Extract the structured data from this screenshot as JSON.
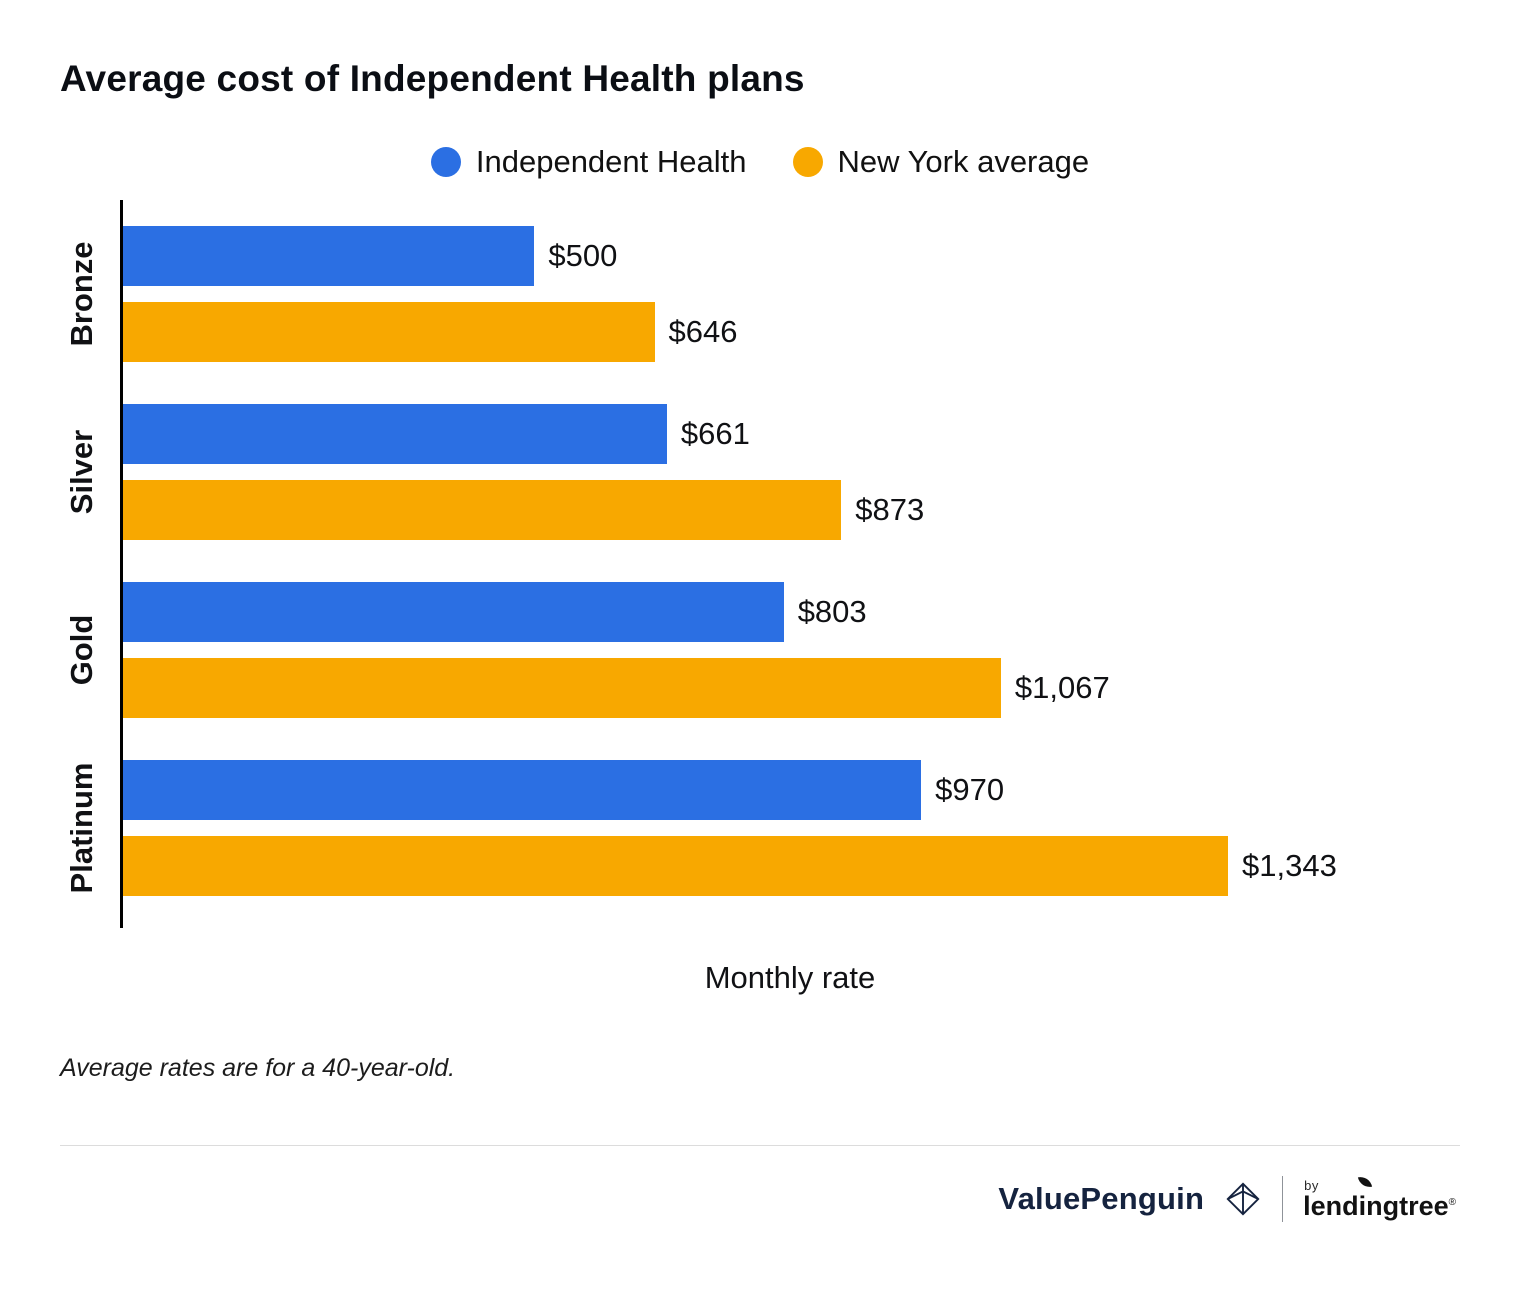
{
  "chart_data": {
    "type": "bar",
    "orientation": "horizontal",
    "title": "Average cost of Independent Health plans",
    "categories": [
      "Bronze",
      "Silver",
      "Gold",
      "Platinum"
    ],
    "series": [
      {
        "name": "Independent Health",
        "color": "#2B6FE3",
        "values": [
          500,
          661,
          803,
          970
        ],
        "labels": [
          "$500",
          "$661",
          "$803",
          "$970"
        ]
      },
      {
        "name": "New York average",
        "color": "#F8A800",
        "values": [
          646,
          873,
          1067,
          1343
        ],
        "labels": [
          "$646",
          "$873",
          "$1,067",
          "$1,343"
        ]
      }
    ],
    "xlabel": "Monthly rate",
    "xmax": 1343,
    "legend_position": "top",
    "grid": false
  },
  "footnote": "Average rates are for a 40-year-old.",
  "footer": {
    "valuepenguin": "ValuePenguin",
    "by": "by",
    "lendingtree": "lendingtree",
    "registered": "®"
  }
}
